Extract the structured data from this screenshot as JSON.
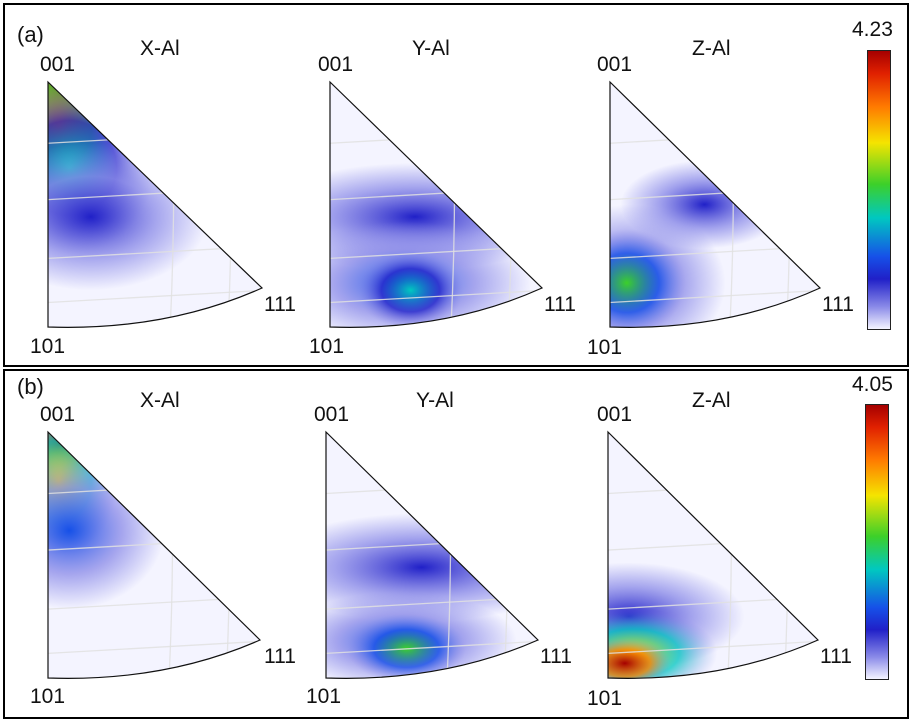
{
  "panels": [
    {
      "tag": "(a)",
      "colorbar_max": "4.23",
      "figures": [
        {
          "title": "X-Al",
          "corner_top": "001",
          "corner_bottom": "101",
          "corner_right": "111"
        },
        {
          "title": "Y-Al",
          "corner_top": "001",
          "corner_bottom": "101",
          "corner_right": "111"
        },
        {
          "title": "Z-Al",
          "corner_top": "001",
          "corner_bottom": "101",
          "corner_right": "111"
        }
      ]
    },
    {
      "tag": "(b)",
      "colorbar_max": "4.05",
      "figures": [
        {
          "title": "X-Al",
          "corner_top": "001",
          "corner_bottom": "101",
          "corner_right": "111"
        },
        {
          "title": "Y-Al",
          "corner_top": "001",
          "corner_bottom": "101",
          "corner_right": "111"
        },
        {
          "title": "Z-Al",
          "corner_top": "001",
          "corner_bottom": "101",
          "corner_right": "111"
        }
      ]
    }
  ],
  "colorscale": [
    "#f4f4ff",
    "#8a8ae8",
    "#2020c8",
    "#1650e8",
    "#00c8c0",
    "#3cd02a",
    "#f5e400",
    "#ff7a00",
    "#e02000",
    "#a50000"
  ]
}
